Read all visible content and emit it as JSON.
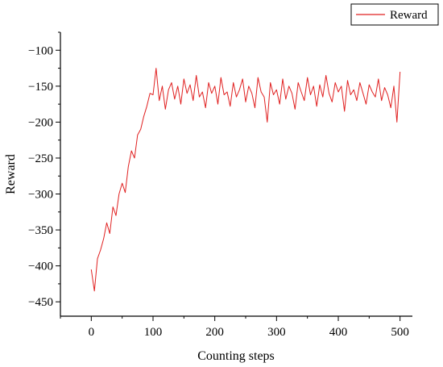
{
  "chart_data": {
    "type": "line",
    "xlabel": "Counting steps",
    "ylabel": "Reward",
    "xlim": [
      -50,
      520
    ],
    "ylim": [
      -470,
      -75
    ],
    "x_ticks": [
      0,
      100,
      200,
      300,
      400,
      500
    ],
    "y_ticks": [
      -450,
      -400,
      -350,
      -300,
      -250,
      -200,
      -150,
      -100
    ],
    "grid": false,
    "legend_position": "top-right",
    "series": [
      {
        "name": "Reward",
        "color": "#e02020",
        "x": [
          0,
          5,
          10,
          15,
          20,
          25,
          30,
          35,
          40,
          45,
          50,
          55,
          60,
          65,
          70,
          75,
          80,
          85,
          90,
          95,
          100,
          105,
          110,
          115,
          120,
          125,
          130,
          135,
          140,
          145,
          150,
          155,
          160,
          165,
          170,
          175,
          180,
          185,
          190,
          195,
          200,
          205,
          210,
          215,
          220,
          225,
          230,
          235,
          240,
          245,
          250,
          255,
          260,
          265,
          270,
          275,
          280,
          285,
          290,
          295,
          300,
          305,
          310,
          315,
          320,
          325,
          330,
          335,
          340,
          345,
          350,
          355,
          360,
          365,
          370,
          375,
          380,
          385,
          390,
          395,
          400,
          405,
          410,
          415,
          420,
          425,
          430,
          435,
          440,
          445,
          450,
          455,
          460,
          465,
          470,
          475,
          480,
          485,
          490,
          495,
          500
        ],
        "y": [
          -405,
          -435,
          -390,
          -378,
          -362,
          -340,
          -355,
          -318,
          -330,
          -300,
          -285,
          -298,
          -262,
          -240,
          -250,
          -218,
          -210,
          -192,
          -178,
          -160,
          -162,
          -125,
          -170,
          -150,
          -182,
          -155,
          -145,
          -168,
          -150,
          -175,
          -140,
          -160,
          -148,
          -170,
          -135,
          -165,
          -158,
          -180,
          -145,
          -160,
          -150,
          -175,
          -138,
          -162,
          -158,
          -178,
          -145,
          -165,
          -155,
          -140,
          -172,
          -150,
          -160,
          -180,
          -138,
          -158,
          -165,
          -200,
          -145,
          -162,
          -155,
          -175,
          -140,
          -168,
          -150,
          -160,
          -182,
          -145,
          -158,
          -170,
          -138,
          -162,
          -150,
          -178,
          -148,
          -165,
          -135,
          -160,
          -172,
          -145,
          -158,
          -150,
          -185,
          -142,
          -162,
          -155,
          -170,
          -145,
          -160,
          -175,
          -148,
          -158,
          -165,
          -140,
          -170,
          -152,
          -162,
          -180,
          -150,
          -200,
          -130
        ]
      }
    ]
  }
}
